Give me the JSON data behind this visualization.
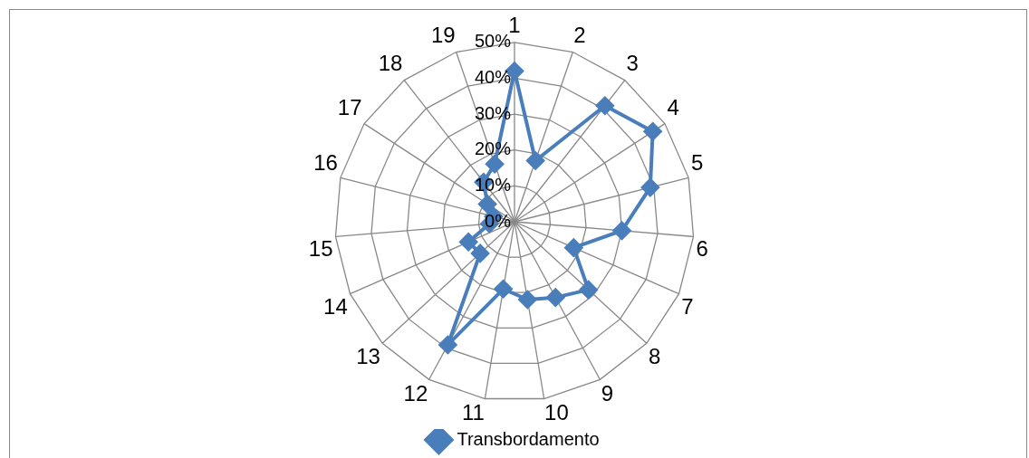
{
  "chart_data": {
    "type": "radar",
    "categories": [
      "1",
      "2",
      "3",
      "4",
      "5",
      "6",
      "7",
      "8",
      "9",
      "10",
      "11",
      "12",
      "13",
      "14",
      "15",
      "16",
      "17",
      "18",
      "19"
    ],
    "series": [
      {
        "name": "Transbordamento",
        "color": "#4a7ebb",
        "values": [
          42,
          18,
          41,
          46,
          39,
          30,
          18,
          28,
          24,
          22,
          19,
          39,
          13,
          14,
          7,
          6,
          9,
          14,
          17
        ]
      }
    ],
    "ylim": [
      0,
      50
    ],
    "yticks": [
      {
        "value": 0,
        "label": "0%"
      },
      {
        "value": 10,
        "label": "10%"
      },
      {
        "value": 20,
        "label": "20%"
      },
      {
        "value": 30,
        "label": "30%"
      },
      {
        "value": 40,
        "label": "40%"
      },
      {
        "value": 50,
        "label": "50%"
      }
    ],
    "grid": true,
    "legend": "bottom",
    "marker": "diamond",
    "line_style": "solid"
  }
}
